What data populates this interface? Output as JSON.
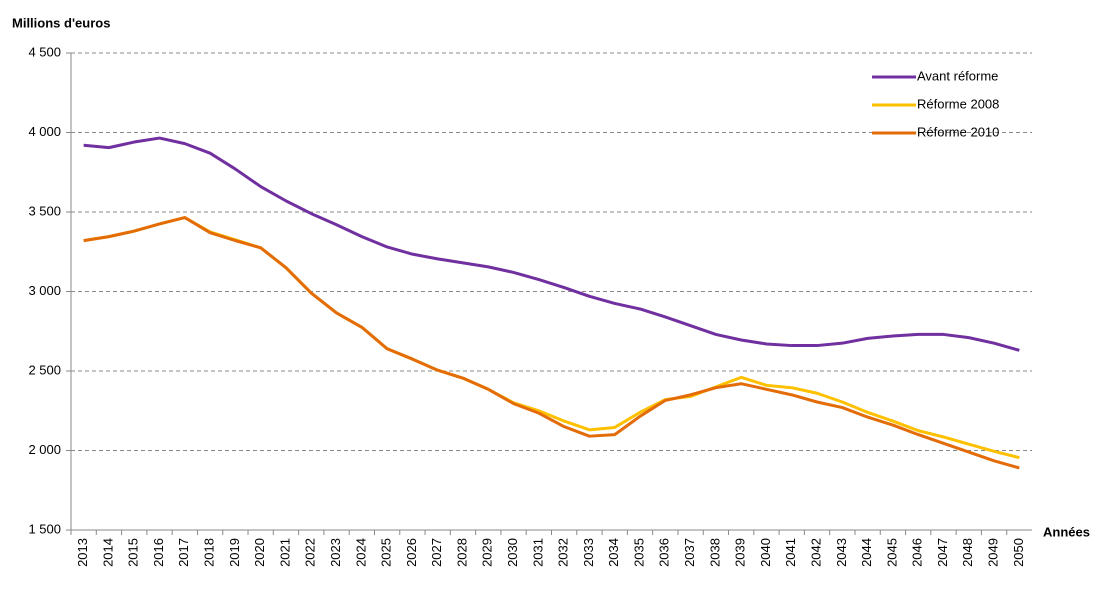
{
  "chart_data": {
    "type": "line",
    "y_label": "Millions d'euros",
    "x_label": "Années",
    "categories": [
      "2013",
      "2014",
      "2015",
      "2016",
      "2017",
      "2018",
      "2019",
      "2020",
      "2021",
      "2022",
      "2023",
      "2024",
      "2025",
      "2026",
      "2027",
      "2028",
      "2029",
      "2030",
      "2031",
      "2032",
      "2033",
      "2034",
      "2035",
      "2036",
      "2037",
      "2038",
      "2039",
      "2040",
      "2041",
      "2042",
      "2043",
      "2044",
      "2045",
      "2046",
      "2047",
      "2048",
      "2049",
      "2050"
    ],
    "series": [
      {
        "name": "Avant réforme",
        "color": "#7030a0",
        "values": [
          3920,
          3905,
          3940,
          3965,
          3930,
          3870,
          3770,
          3660,
          3570,
          3490,
          3420,
          3345,
          3280,
          3235,
          3205,
          3180,
          3155,
          3120,
          3075,
          3025,
          2970,
          2925,
          2890,
          2840,
          2785,
          2730,
          2695,
          2670,
          2660,
          2660,
          2675,
          2705,
          2720,
          2730,
          2730,
          2710,
          2675,
          2630
        ]
      },
      {
        "name": "Réforme 2008",
        "color": "#ffc000",
        "values": [
          3320,
          3345,
          3380,
          3425,
          3465,
          3375,
          3325,
          3275,
          3150,
          2990,
          2865,
          2775,
          2640,
          2575,
          2505,
          2455,
          2385,
          2300,
          2250,
          2185,
          2130,
          2145,
          2240,
          2320,
          2340,
          2400,
          2460,
          2410,
          2395,
          2360,
          2305,
          2240,
          2185,
          2125,
          2085,
          2040,
          1995,
          1955
        ]
      },
      {
        "name": "Réforme 2010",
        "color": "#e36c09",
        "values": [
          3320,
          3345,
          3380,
          3425,
          3465,
          3370,
          3320,
          3275,
          3150,
          2990,
          2865,
          2775,
          2640,
          2575,
          2505,
          2455,
          2385,
          2295,
          2235,
          2150,
          2090,
          2100,
          2215,
          2315,
          2350,
          2395,
          2420,
          2385,
          2350,
          2305,
          2270,
          2210,
          2160,
          2100,
          2045,
          1990,
          1935,
          1890
        ]
      }
    ],
    "ylim": [
      1500,
      4500
    ],
    "yticks": [
      {
        "value": 1500,
        "label": "1 500"
      },
      {
        "value": 2000,
        "label": "2 000"
      },
      {
        "value": 2500,
        "label": "2 500"
      },
      {
        "value": 3000,
        "label": "3 000"
      },
      {
        "value": 3500,
        "label": "3 500"
      },
      {
        "value": 4000,
        "label": "4 000"
      },
      {
        "value": 4500,
        "label": "4 500"
      }
    ],
    "grid": true,
    "legend": "top-right"
  }
}
